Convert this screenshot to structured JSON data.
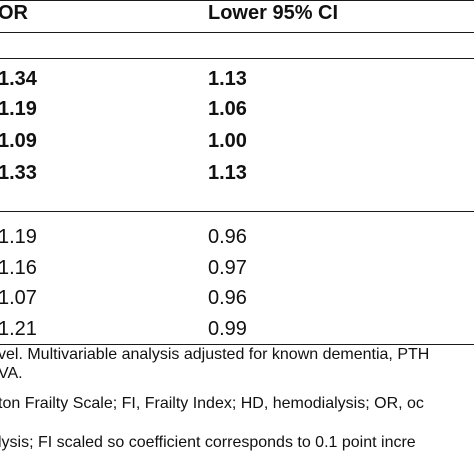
{
  "table": {
    "headers": {
      "or": "OR",
      "lower": "Lower 95% CI"
    },
    "rows": [
      {
        "or": "1.34",
        "lower": "1.13",
        "bold": true
      },
      {
        "or": "1.19",
        "lower": "1.06",
        "bold": true
      },
      {
        "or": "1.09",
        "lower": "1.00",
        "bold": true
      },
      {
        "or": "1.33",
        "lower": "1.13",
        "bold": true
      },
      {
        "or": "1.19",
        "lower": "0.96",
        "bold": false
      },
      {
        "or": "1.16",
        "lower": "0.97",
        "bold": false
      },
      {
        "or": "1.07",
        "lower": "0.96",
        "bold": false
      },
      {
        "or": "1.21",
        "lower": "0.99",
        "bold": false
      }
    ]
  },
  "footnotes": {
    "line1": "vel. Multivariable analysis adjusted for known dementia, PTH",
    "line2": "VA.",
    "line3": "ton Frailty Scale; FI, Frailty Index; HD, hemodialysis; OR, oc",
    "line4": "lysis; FI scaled so coefficient corresponds to 0.1 point incre"
  }
}
